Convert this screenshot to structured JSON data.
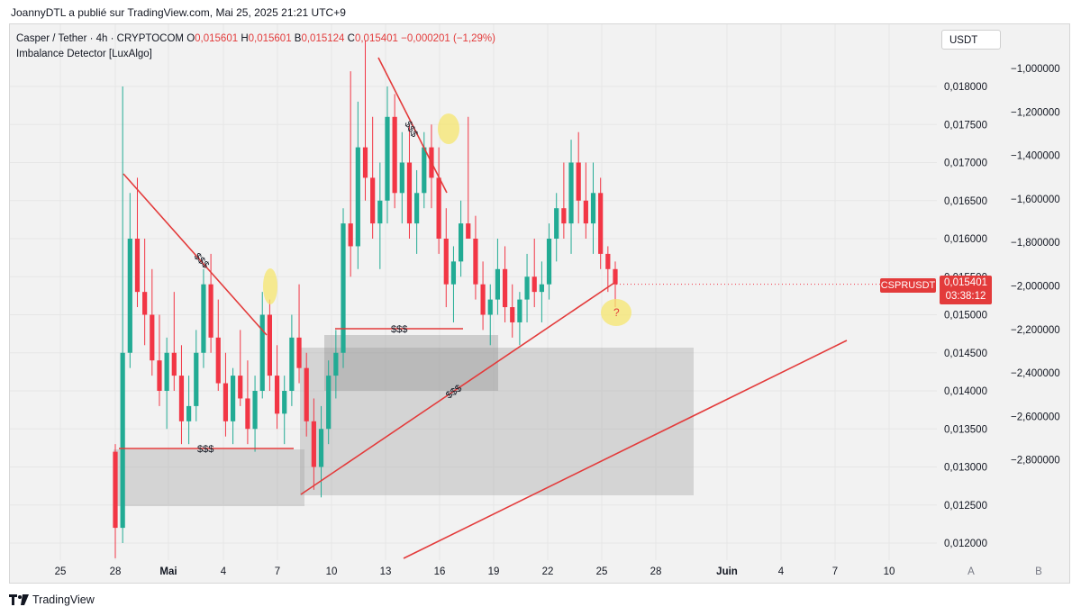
{
  "header": {
    "published": "JoannyDTL a publié sur TradingView.com, Mai 25, 2025 21:21 UTC+9"
  },
  "legend": {
    "symbol": "Casper / Tether · 4h · CRYPTOCOM",
    "o_label": "O",
    "o_value": "0,015601",
    "h_label": "H",
    "h_value": "0,015601",
    "l_label": "B",
    "l_value": "0,015124",
    "c_label": "C",
    "c_value": "0,015401",
    "change": "−0,000201 (−1,29%)",
    "indicator": "Imbalance Detector [LuxAlgo]"
  },
  "currency_button": "USDT",
  "price_tag": {
    "symbol": "CSPRUSDT",
    "price": "0,015401",
    "countdown": "03:38:12"
  },
  "footer": {
    "brand": "TradingView"
  },
  "colors": {
    "up": "#22ab94",
    "down": "#f23645",
    "trendline": "#e33b3b",
    "zone": "#9e9e9e",
    "highlight": "#f5e66e"
  },
  "chart_data": {
    "type": "candlestick",
    "title": "Casper / Tether · 4h · CRYPTOCOM",
    "y_ticks_price": [
      "0,018000",
      "0,017500",
      "0,017000",
      "0,016500",
      "0,016000",
      "0,015500",
      "0,015000",
      "0,014500",
      "0,014000",
      "0,013500",
      "0,013000",
      "0,012500",
      "0,012000"
    ],
    "y_ticks_secondary": [
      "−1,000000",
      "−1,200000",
      "−1,400000",
      "−1,600000",
      "−1,800000",
      "−2,000000",
      "−2,200000",
      "−2,400000",
      "−2,600000",
      "−2,800000"
    ],
    "x_ticks": [
      "25",
      "28",
      "Mai",
      "4",
      "7",
      "10",
      "13",
      "16",
      "19",
      "22",
      "25",
      "28",
      "Juin",
      "4",
      "7",
      "10"
    ],
    "scale_labels": [
      "A",
      "B"
    ],
    "annotations": [
      "$$$",
      "$$$",
      "$$$",
      "$$$",
      "$$$",
      "?"
    ],
    "last_price": 0.015401,
    "candles": [
      [
        0.0132,
        0.0133,
        0.0118,
        0.0122
      ],
      [
        0.0122,
        0.018,
        0.012,
        0.0145
      ],
      [
        0.0145,
        0.0166,
        0.0143,
        0.016
      ],
      [
        0.016,
        0.0168,
        0.0151,
        0.0153
      ],
      [
        0.0153,
        0.016,
        0.0146,
        0.015
      ],
      [
        0.015,
        0.0156,
        0.0142,
        0.0144
      ],
      [
        0.0144,
        0.015,
        0.0138,
        0.014
      ],
      [
        0.014,
        0.0147,
        0.0135,
        0.0145
      ],
      [
        0.0145,
        0.0153,
        0.014,
        0.0142
      ],
      [
        0.0142,
        0.0146,
        0.0133,
        0.0136
      ],
      [
        0.0136,
        0.0142,
        0.0133,
        0.0138
      ],
      [
        0.0138,
        0.0148,
        0.0136,
        0.0145
      ],
      [
        0.0145,
        0.0156,
        0.0143,
        0.0154
      ],
      [
        0.0154,
        0.0158,
        0.0145,
        0.0147
      ],
      [
        0.0147,
        0.0152,
        0.014,
        0.0141
      ],
      [
        0.0141,
        0.0145,
        0.0134,
        0.0136
      ],
      [
        0.0136,
        0.0143,
        0.0133,
        0.0142
      ],
      [
        0.0142,
        0.0148,
        0.0138,
        0.0139
      ],
      [
        0.0139,
        0.0144,
        0.0133,
        0.0135
      ],
      [
        0.0135,
        0.0142,
        0.0132,
        0.014
      ],
      [
        0.014,
        0.0153,
        0.0139,
        0.015
      ],
      [
        0.015,
        0.0152,
        0.014,
        0.0142
      ],
      [
        0.0142,
        0.0146,
        0.0135,
        0.0137
      ],
      [
        0.0137,
        0.0142,
        0.0133,
        0.014
      ],
      [
        0.014,
        0.015,
        0.0138,
        0.0147
      ],
      [
        0.0147,
        0.0154,
        0.0141,
        0.0143
      ],
      [
        0.0143,
        0.0145,
        0.0134,
        0.0136
      ],
      [
        0.0136,
        0.0139,
        0.0127,
        0.013
      ],
      [
        0.013,
        0.0138,
        0.0126,
        0.0135
      ],
      [
        0.0135,
        0.0144,
        0.0133,
        0.0142
      ],
      [
        0.0142,
        0.0148,
        0.0139,
        0.0145
      ],
      [
        0.0145,
        0.0164,
        0.0143,
        0.0162
      ],
      [
        0.0162,
        0.0182,
        0.0155,
        0.0159
      ],
      [
        0.0159,
        0.0178,
        0.0156,
        0.0172
      ],
      [
        0.0172,
        0.0186,
        0.0165,
        0.0168
      ],
      [
        0.0168,
        0.0176,
        0.016,
        0.0162
      ],
      [
        0.0162,
        0.017,
        0.0156,
        0.0165
      ],
      [
        0.0165,
        0.018,
        0.0162,
        0.0176
      ],
      [
        0.0176,
        0.0179,
        0.0164,
        0.0166
      ],
      [
        0.0166,
        0.0174,
        0.0162,
        0.017
      ],
      [
        0.017,
        0.0175,
        0.016,
        0.0162
      ],
      [
        0.0162,
        0.0169,
        0.0158,
        0.0166
      ],
      [
        0.0166,
        0.0174,
        0.0164,
        0.0172
      ],
      [
        0.0172,
        0.0175,
        0.0164,
        0.0168
      ],
      [
        0.0168,
        0.0172,
        0.0158,
        0.016
      ],
      [
        0.016,
        0.0164,
        0.0151,
        0.0154
      ],
      [
        0.0154,
        0.0159,
        0.0149,
        0.0157
      ],
      [
        0.0157,
        0.0165,
        0.0155,
        0.0162
      ],
      [
        0.0162,
        0.0176,
        0.016,
        0.016
      ],
      [
        0.016,
        0.0163,
        0.0152,
        0.0154
      ],
      [
        0.0154,
        0.0157,
        0.0148,
        0.015
      ],
      [
        0.015,
        0.0154,
        0.0146,
        0.0152
      ],
      [
        0.0152,
        0.016,
        0.015,
        0.0156
      ],
      [
        0.0156,
        0.0159,
        0.0149,
        0.0151
      ],
      [
        0.0151,
        0.0154,
        0.0147,
        0.0149
      ],
      [
        0.0149,
        0.0153,
        0.0146,
        0.0152
      ],
      [
        0.0152,
        0.0158,
        0.0149,
        0.0155
      ],
      [
        0.0155,
        0.016,
        0.0151,
        0.0153
      ],
      [
        0.0153,
        0.0157,
        0.0149,
        0.0154
      ],
      [
        0.0154,
        0.0162,
        0.0152,
        0.016
      ],
      [
        0.016,
        0.0166,
        0.0157,
        0.0164
      ],
      [
        0.0164,
        0.017,
        0.016,
        0.0162
      ],
      [
        0.0162,
        0.0173,
        0.0158,
        0.017
      ],
      [
        0.017,
        0.0174,
        0.0162,
        0.0165
      ],
      [
        0.0165,
        0.017,
        0.016,
        0.0162
      ],
      [
        0.0162,
        0.017,
        0.0158,
        0.0166
      ],
      [
        0.0166,
        0.0168,
        0.0156,
        0.0158
      ],
      [
        0.0158,
        0.0159,
        0.0153,
        0.0156
      ],
      [
        0.0156,
        0.0157,
        0.0151,
        0.0154
      ]
    ]
  }
}
